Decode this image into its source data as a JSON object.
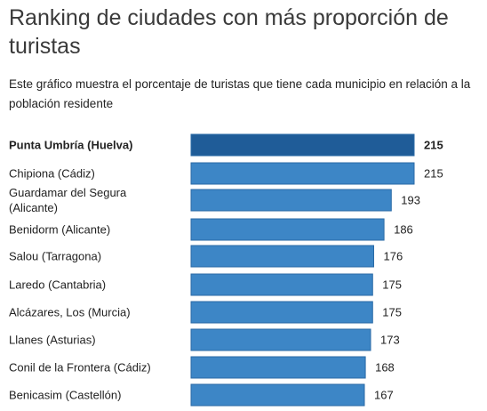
{
  "header": {
    "title": "Ranking de ciudades con más proporción de turistas",
    "subtitle": "Este gráfico muestra el porcentaje de turistas que tiene cada municipio en relación a la población residente"
  },
  "colors": {
    "highlight_bar": "#1f5c98",
    "bar": "#3d86c6",
    "bar_edge": "#2a6aa6"
  },
  "chart_data": {
    "type": "bar",
    "orientation": "horizontal",
    "title": "Ranking de ciudades con más proporción de turistas",
    "subtitle": "Este gráfico muestra el porcentaje de turistas que tiene cada municipio en relación a la población residente",
    "categories": [
      "Punta Umbría (Huelva)",
      "Chipiona (Cádiz)",
      "Guardamar del Segura (Alicante)",
      "Benidorm (Alicante)",
      "Salou (Tarragona)",
      "Laredo (Cantabria)",
      "Alcázares, Los (Murcia)",
      "Llanes (Asturias)",
      "Conil de la Frontera (Cádiz)",
      "Benicasim (Castellón)"
    ],
    "category_lines": [
      [
        "Punta Umbría (Huelva)"
      ],
      [
        "Chipiona (Cádiz)"
      ],
      [
        "Guardamar del Segura",
        "(Alicante)"
      ],
      [
        "Benidorm (Alicante)"
      ],
      [
        "Salou (Tarragona)"
      ],
      [
        "Laredo (Cantabria)"
      ],
      [
        "Alcázares, Los (Murcia)"
      ],
      [
        "Llanes (Asturias)"
      ],
      [
        "Conil de la Frontera (Cádiz)"
      ],
      [
        "Benicasim (Castellón)"
      ]
    ],
    "values": [
      215,
      215,
      193,
      186,
      176,
      175,
      175,
      173,
      168,
      167
    ],
    "highlighted_index": 0,
    "data_labels": true,
    "grid": false,
    "xlabel": "",
    "ylabel": ""
  }
}
